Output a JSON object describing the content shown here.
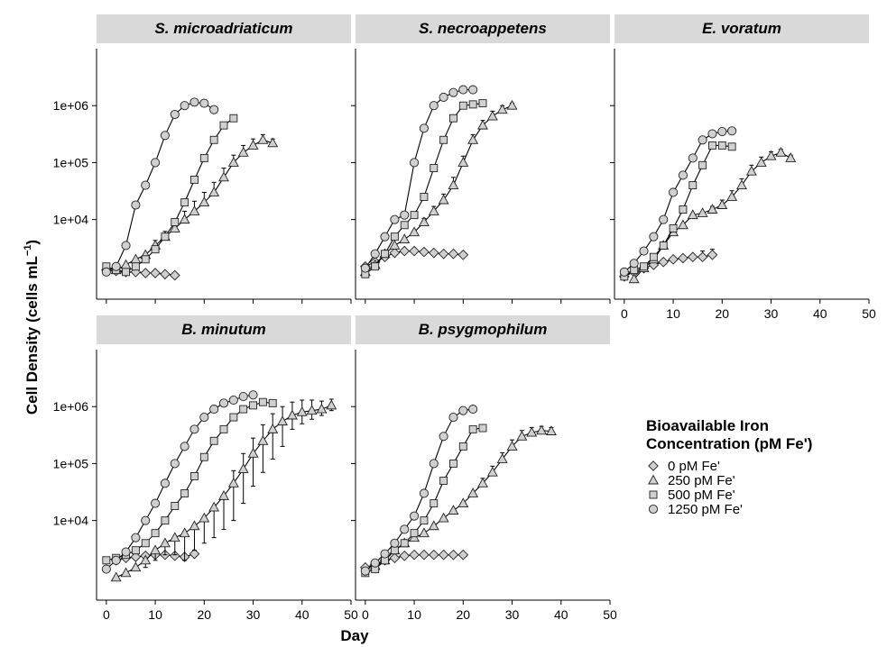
{
  "figure": {
    "xlabel": "Day",
    "ylabel_main": "Cell Density",
    "ylabel_unit": "(cells mL",
    "ylabel_exp": "−1",
    "ylabel_close": ")",
    "strip_color": "#d9d9d9",
    "point_fill": "#d0d0d0",
    "line_color": "#000000"
  },
  "legend": {
    "title_line1": "Bioavailable Iron",
    "title_line2": "Concentration (pM Fe')",
    "entries": [
      {
        "label": "0 pM Fe'",
        "shape": "diamond"
      },
      {
        "label": "250 pM Fe'",
        "shape": "triangle"
      },
      {
        "label": "500 pM Fe'",
        "shape": "square"
      },
      {
        "label": "1250 pM Fe'",
        "shape": "circle"
      }
    ]
  },
  "chart_data": [
    {
      "type": "line",
      "title": "S. microadriaticum",
      "xlim": [
        -2,
        50
      ],
      "xticks": [
        0,
        10,
        20,
        30,
        40,
        50
      ],
      "ylog": true,
      "ylim": [
        400,
        10000000
      ],
      "yticks": [
        10000,
        100000,
        1000000
      ],
      "ytick_labels": [
        "1e+04",
        "1e+05",
        "1e+06"
      ],
      "show_x_ticks": false,
      "series": [
        {
          "name": "0 pM Fe'",
          "shape": "diamond",
          "x": [
            0,
            2,
            4,
            6,
            8,
            10,
            12,
            14
          ],
          "y": [
            1300,
            1250,
            1200,
            1200,
            1150,
            1150,
            1100,
            1050
          ]
        },
        {
          "name": "250 pM Fe'",
          "shape": "triangle",
          "x": [
            2,
            4,
            6,
            8,
            10,
            12,
            14,
            16,
            18,
            20,
            22,
            24,
            26,
            28,
            30,
            32,
            34
          ],
          "y": [
            1300,
            1600,
            2000,
            2400,
            3500,
            5000,
            7000,
            10000,
            14000,
            20000,
            30000,
            55000,
            100000,
            150000,
            200000,
            250000,
            220000
          ],
          "err": [
            0,
            0,
            0,
            0,
            800,
            1200,
            2000,
            4000,
            7000,
            10000,
            15000,
            25000,
            35000,
            50000,
            60000,
            60000,
            40000
          ]
        },
        {
          "name": "500 pM Fe'",
          "shape": "square",
          "x": [
            0,
            2,
            4,
            6,
            8,
            10,
            12,
            14,
            16,
            18,
            20,
            22,
            24,
            26
          ],
          "y": [
            1500,
            1300,
            1200,
            1500,
            2000,
            3000,
            5000,
            9000,
            20000,
            50000,
            120000,
            250000,
            450000,
            600000
          ]
        },
        {
          "name": "1250 pM Fe'",
          "shape": "circle",
          "x": [
            0,
            2,
            4,
            6,
            8,
            10,
            12,
            14,
            16,
            18,
            20,
            22
          ],
          "y": [
            1200,
            1500,
            3500,
            18000,
            40000,
            100000,
            300000,
            700000,
            1000000,
            1150000,
            1100000,
            850000
          ]
        }
      ]
    },
    {
      "type": "line",
      "title": "S. necroappetens",
      "xlim": [
        -2,
        50
      ],
      "xticks": [
        0,
        10,
        20,
        30,
        40,
        50
      ],
      "ylog": true,
      "ylim": [
        400,
        10000000
      ],
      "yticks": [
        10000,
        100000,
        1000000
      ],
      "ytick_labels": [
        "",
        "",
        ""
      ],
      "show_x_ticks": false,
      "series": [
        {
          "name": "0 pM Fe'",
          "shape": "diamond",
          "x": [
            0,
            2,
            4,
            6,
            8,
            10,
            12,
            14,
            16,
            18,
            20
          ],
          "y": [
            1500,
            1800,
            2200,
            2600,
            2800,
            2800,
            2700,
            2600,
            2500,
            2500,
            2400
          ]
        },
        {
          "name": "250 pM Fe'",
          "shape": "triangle",
          "x": [
            0,
            2,
            4,
            6,
            8,
            10,
            12,
            14,
            16,
            18,
            20,
            22,
            24,
            26,
            28,
            30
          ],
          "y": [
            1200,
            1600,
            2500,
            3500,
            4500,
            6000,
            9000,
            14000,
            22000,
            40000,
            100000,
            250000,
            450000,
            650000,
            850000,
            1000000
          ],
          "err": [
            0,
            0,
            0,
            0,
            0,
            0,
            1500,
            3000,
            6000,
            15000,
            30000,
            60000,
            100000,
            150000,
            150000,
            100000
          ]
        },
        {
          "name": "500 pM Fe'",
          "shape": "square",
          "x": [
            0,
            2,
            4,
            6,
            8,
            10,
            12,
            14,
            16,
            18,
            20,
            22,
            24
          ],
          "y": [
            1100,
            1500,
            2500,
            5000,
            8000,
            12000,
            25000,
            80000,
            250000,
            600000,
            1000000,
            1050000,
            1100000
          ]
        },
        {
          "name": "1250 pM Fe'",
          "shape": "circle",
          "x": [
            0,
            2,
            4,
            6,
            8,
            10,
            12,
            14,
            16,
            18,
            20,
            22
          ],
          "y": [
            1400,
            2500,
            5000,
            10000,
            12000,
            100000,
            400000,
            1000000,
            1400000,
            1700000,
            1900000,
            1900000
          ]
        }
      ]
    },
    {
      "type": "line",
      "title": "E. voratum",
      "xlim": [
        -2,
        50
      ],
      "xticks": [
        0,
        10,
        20,
        30,
        40,
        50
      ],
      "ylog": true,
      "ylim": [
        400,
        10000000
      ],
      "yticks": [
        10000,
        100000,
        1000000
      ],
      "ytick_labels": [
        "",
        "",
        ""
      ],
      "show_x_ticks": true,
      "series": [
        {
          "name": "0 pM Fe'",
          "shape": "diamond",
          "x": [
            0,
            2,
            4,
            6,
            8,
            10,
            12,
            14,
            16,
            18
          ],
          "y": [
            1000,
            1200,
            1400,
            1600,
            1800,
            2000,
            2100,
            2200,
            2200,
            2400
          ],
          "err": [
            0,
            0,
            0,
            0,
            0,
            0,
            0,
            0,
            600,
            600
          ]
        },
        {
          "name": "250 pM Fe'",
          "shape": "triangle",
          "x": [
            2,
            4,
            6,
            8,
            10,
            12,
            14,
            16,
            18,
            20,
            22,
            24,
            26,
            28,
            30,
            32,
            34
          ],
          "y": [
            900,
            1400,
            2000,
            3500,
            6000,
            8000,
            12000,
            13000,
            15000,
            18000,
            25000,
            40000,
            70000,
            100000,
            130000,
            150000,
            120000
          ],
          "err": [
            0,
            0,
            0,
            0,
            0,
            0,
            0,
            0,
            2000,
            4000,
            7000,
            12000,
            20000,
            25000,
            25000,
            20000,
            15000
          ]
        },
        {
          "name": "500 pM Fe'",
          "shape": "square",
          "x": [
            0,
            2,
            4,
            6,
            8,
            10,
            12,
            14,
            16,
            18,
            20,
            22
          ],
          "y": [
            1000,
            1300,
            1500,
            2200,
            3500,
            7000,
            15000,
            40000,
            90000,
            200000,
            200000,
            190000
          ]
        },
        {
          "name": "1250 pM Fe'",
          "shape": "circle",
          "x": [
            0,
            2,
            4,
            6,
            8,
            10,
            12,
            14,
            16,
            18,
            20,
            22
          ],
          "y": [
            1200,
            1700,
            2800,
            5000,
            10000,
            30000,
            60000,
            120000,
            250000,
            320000,
            350000,
            360000
          ]
        }
      ]
    },
    {
      "type": "line",
      "title": "B. minutum",
      "xlim": [
        -2,
        50
      ],
      "xticks": [
        0,
        10,
        20,
        30,
        40,
        50
      ],
      "ylog": true,
      "ylim": [
        400,
        10000000
      ],
      "yticks": [
        10000,
        100000,
        1000000
      ],
      "ytick_labels": [
        "1e+04",
        "1e+05",
        "1e+06"
      ],
      "show_x_ticks": true,
      "series": [
        {
          "name": "0 pM Fe'",
          "shape": "diamond",
          "x": [
            2,
            4,
            6,
            8,
            10,
            12,
            14,
            16,
            18
          ],
          "y": [
            2000,
            2200,
            2300,
            2400,
            2500,
            2500,
            2400,
            2300,
            2600
          ]
        },
        {
          "name": "250 pM Fe'",
          "shape": "triangle",
          "x": [
            2,
            4,
            6,
            8,
            10,
            12,
            14,
            16,
            18,
            20,
            22,
            24,
            26,
            28,
            30,
            32,
            34,
            36,
            38,
            40,
            42,
            44,
            46
          ],
          "y": [
            1000,
            1200,
            1500,
            2000,
            3000,
            4000,
            5000,
            6000,
            8000,
            11000,
            17000,
            27000,
            45000,
            80000,
            150000,
            250000,
            400000,
            550000,
            700000,
            800000,
            850000,
            900000,
            1050000
          ],
          "err": [
            0,
            0,
            0,
            0,
            0,
            0,
            0,
            0,
            0,
            0,
            0,
            0,
            30000,
            70000,
            130000,
            230000,
            350000,
            450000,
            500000,
            500000,
            450000,
            350000,
            300000
          ],
          "err_low": [
            0,
            0,
            0,
            500,
            1000,
            1500,
            2500,
            4000,
            5000,
            7000,
            12000,
            20000,
            35000,
            60000,
            110000,
            180000,
            280000,
            350000,
            300000,
            300000,
            250000,
            200000,
            200000
          ]
        },
        {
          "name": "500 pM Fe'",
          "shape": "square",
          "x": [
            0,
            2,
            4,
            6,
            8,
            10,
            12,
            14,
            16,
            18,
            20,
            22,
            24,
            26,
            28,
            30,
            32,
            34
          ],
          "y": [
            2000,
            2200,
            2500,
            3000,
            4000,
            6000,
            10000,
            18000,
            30000,
            60000,
            130000,
            250000,
            400000,
            650000,
            900000,
            1050000,
            1200000,
            1150000
          ]
        },
        {
          "name": "1250 pM Fe'",
          "shape": "circle",
          "x": [
            0,
            2,
            4,
            6,
            8,
            10,
            12,
            14,
            16,
            18,
            20,
            22,
            24,
            26,
            28,
            30
          ],
          "y": [
            1400,
            2000,
            2800,
            5000,
            10000,
            20000,
            45000,
            100000,
            200000,
            400000,
            650000,
            900000,
            1150000,
            1300000,
            1500000,
            1600000
          ]
        }
      ]
    },
    {
      "type": "line",
      "title": "B. psygmophilum",
      "xlim": [
        -2,
        50
      ],
      "xticks": [
        0,
        10,
        20,
        30,
        40,
        50
      ],
      "ylog": true,
      "ylim": [
        400,
        10000000
      ],
      "yticks": [
        10000,
        100000,
        1000000
      ],
      "ytick_labels": [
        "",
        "",
        ""
      ],
      "show_x_ticks": true,
      "series": [
        {
          "name": "0 pM Fe'",
          "shape": "diamond",
          "x": [
            0,
            2,
            4,
            6,
            8,
            10,
            12,
            14,
            16,
            18,
            20
          ],
          "y": [
            1500,
            1700,
            2000,
            2200,
            2400,
            2500,
            2500,
            2500,
            2500,
            2500,
            2500
          ]
        },
        {
          "name": "250 pM Fe'",
          "shape": "triangle",
          "x": [
            2,
            4,
            6,
            8,
            10,
            12,
            14,
            16,
            18,
            20,
            22,
            24,
            26,
            28,
            30,
            32,
            34,
            36,
            38
          ],
          "y": [
            1600,
            2000,
            3000,
            4000,
            5000,
            6000,
            8000,
            11000,
            15000,
            20000,
            30000,
            45000,
            70000,
            120000,
            200000,
            300000,
            350000,
            380000,
            370000
          ],
          "err": [
            0,
            0,
            0,
            0,
            0,
            0,
            0,
            0,
            0,
            0,
            0,
            10000,
            20000,
            35000,
            60000,
            80000,
            80000,
            70000,
            60000
          ]
        },
        {
          "name": "500 pM Fe'",
          "shape": "square",
          "x": [
            0,
            2,
            4,
            6,
            8,
            10,
            12,
            14,
            16,
            18,
            20,
            22,
            24
          ],
          "y": [
            1200,
            1400,
            2000,
            3000,
            4000,
            6000,
            10000,
            20000,
            50000,
            100000,
            200000,
            400000,
            420000
          ]
        },
        {
          "name": "1250 pM Fe'",
          "shape": "circle",
          "x": [
            0,
            2,
            4,
            6,
            8,
            10,
            12,
            14,
            16,
            18,
            20,
            22
          ],
          "y": [
            1300,
            1800,
            2600,
            4000,
            7000,
            12000,
            30000,
            100000,
            300000,
            650000,
            850000,
            900000
          ]
        }
      ]
    }
  ]
}
